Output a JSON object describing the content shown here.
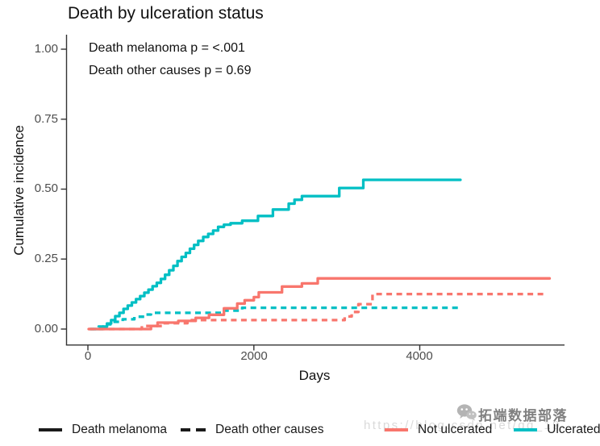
{
  "title": "Death by ulceration status",
  "annotations": {
    "melanoma_p": "Death melanoma p = <.001",
    "other_p": "Death other causes p = 0.69"
  },
  "chart_data": {
    "type": "line",
    "subtype": "step-cumulative-incidence",
    "title": "Death by ulceration status",
    "xlabel": "Days",
    "ylabel": "Cumulative incidence",
    "xticks": [
      "0",
      "2000",
      "4000"
    ],
    "xtick_values": [
      0,
      2000,
      4000
    ],
    "yticks": [
      "1.00",
      "0.75",
      "0.50",
      "0.25",
      "0.00"
    ],
    "ytick_values": [
      1.0,
      0.75,
      0.5,
      0.25,
      0.0
    ],
    "xlim": [
      0,
      5750
    ],
    "ylim": [
      0,
      1.05
    ],
    "grid": false,
    "legend_position": "bottom",
    "series": [
      {
        "id": "ulcerated-death-melanoma",
        "name": "Ulcerated — death melanoma",
        "color": "#00BFC4",
        "dash": "solid",
        "points": [
          [
            30,
            0
          ],
          [
            180,
            0.009
          ],
          [
            230,
            0.02
          ],
          [
            280,
            0.032
          ],
          [
            330,
            0.046
          ],
          [
            380,
            0.058
          ],
          [
            430,
            0.072
          ],
          [
            480,
            0.084
          ],
          [
            530,
            0.095
          ],
          [
            580,
            0.107
          ],
          [
            630,
            0.118
          ],
          [
            680,
            0.13
          ],
          [
            730,
            0.141
          ],
          [
            780,
            0.153
          ],
          [
            830,
            0.165
          ],
          [
            880,
            0.179
          ],
          [
            930,
            0.194
          ],
          [
            980,
            0.21
          ],
          [
            1030,
            0.226
          ],
          [
            1080,
            0.243
          ],
          [
            1130,
            0.258
          ],
          [
            1180,
            0.272
          ],
          [
            1230,
            0.287
          ],
          [
            1280,
            0.301
          ],
          [
            1330,
            0.315
          ],
          [
            1390,
            0.329
          ],
          [
            1450,
            0.34
          ],
          [
            1510,
            0.352
          ],
          [
            1570,
            0.365
          ],
          [
            1640,
            0.373
          ],
          [
            1720,
            0.378
          ],
          [
            1860,
            0.387
          ],
          [
            2050,
            0.404
          ],
          [
            2230,
            0.427
          ],
          [
            2420,
            0.448
          ],
          [
            2490,
            0.462
          ],
          [
            2580,
            0.475
          ],
          [
            3030,
            0.504
          ],
          [
            3320,
            0.533
          ],
          [
            4490,
            0.533
          ]
        ]
      },
      {
        "id": "ulcerated-death-other",
        "name": "Ulcerated — death other causes",
        "color": "#00BFC4",
        "dash": "dashed",
        "points": [
          [
            30,
            0
          ],
          [
            130,
            0.009
          ],
          [
            200,
            0.017
          ],
          [
            300,
            0.026
          ],
          [
            420,
            0.035
          ],
          [
            560,
            0.044
          ],
          [
            700,
            0.052
          ],
          [
            760,
            0.058
          ],
          [
            1640,
            0.066
          ],
          [
            1860,
            0.076
          ],
          [
            4490,
            0.076
          ]
        ]
      },
      {
        "id": "not-ulcerated-death-melanoma",
        "name": "Not ulcerated — death melanoma",
        "color": "#F8766D",
        "dash": "solid",
        "points": [
          [
            10,
            0
          ],
          [
            760,
            0.011
          ],
          [
            840,
            0.023
          ],
          [
            1090,
            0.029
          ],
          [
            1300,
            0.04
          ],
          [
            1460,
            0.051
          ],
          [
            1640,
            0.074
          ],
          [
            1800,
            0.091
          ],
          [
            1890,
            0.103
          ],
          [
            2000,
            0.114
          ],
          [
            2060,
            0.131
          ],
          [
            2340,
            0.152
          ],
          [
            2580,
            0.163
          ],
          [
            2770,
            0.181
          ],
          [
            5565,
            0.181
          ]
        ]
      },
      {
        "id": "not-ulcerated-death-other",
        "name": "Not ulcerated — death other causes",
        "color": "#F8766D",
        "dash": "dashed",
        "points": [
          [
            10,
            0
          ],
          [
            650,
            0.011
          ],
          [
            900,
            0.021
          ],
          [
            1200,
            0.032
          ],
          [
            3095,
            0.045
          ],
          [
            3180,
            0.061
          ],
          [
            3260,
            0.089
          ],
          [
            3430,
            0.125
          ],
          [
            5537,
            0.125
          ]
        ]
      }
    ]
  },
  "legend": {
    "linetype_items": [
      {
        "label": "Death melanoma",
        "style": "solid"
      },
      {
        "label": "Death other causes",
        "style": "dashed"
      }
    ],
    "color_items": [
      {
        "label": "Not ulcerated",
        "color": "#F8766D"
      },
      {
        "label": "Ulcerated",
        "color": "#00BFC4"
      }
    ]
  },
  "watermark": {
    "brand": "拓端数据部落",
    "url_text": "https://blog.csdn.net/qq_19",
    "icon": "wechat-icon"
  },
  "colors": {
    "not_ulcerated": "#F8766D",
    "ulcerated": "#00BFC4",
    "axis": "#333333",
    "tick_label": "#4d4d4d"
  }
}
